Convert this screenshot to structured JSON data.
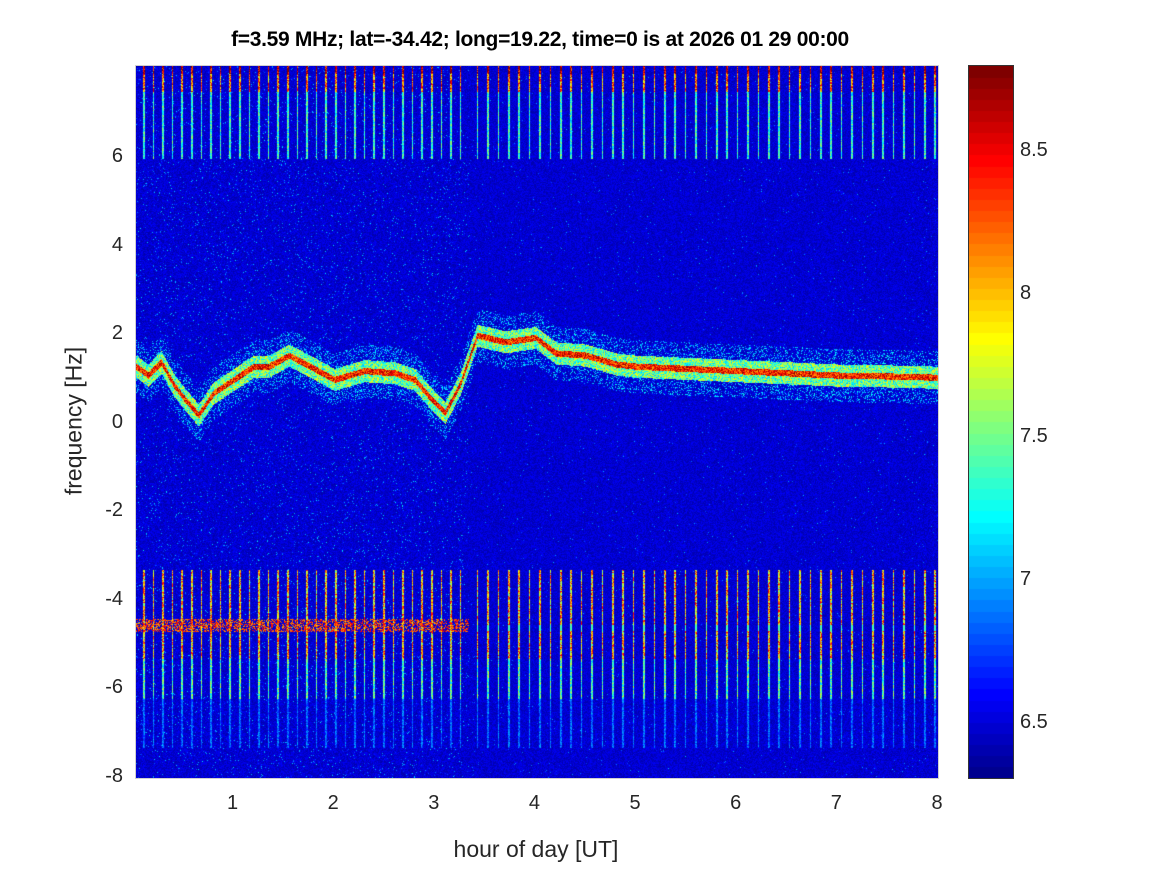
{
  "chart_data": {
    "type": "heatmap",
    "title": "f=3.59 MHz;  lat=-34.42; long=19.22, time=0 is at 2026 01 29 00:00",
    "xlabel": "hour of day [UT]",
    "ylabel": "frequency [Hz]",
    "xlim": [
      0.03,
      8
    ],
    "ylim": [
      -8,
      8.08
    ],
    "xticks": [
      1,
      2,
      3,
      4,
      5,
      6,
      7,
      8
    ],
    "yticks": [
      -8,
      -6,
      -4,
      -2,
      0,
      2,
      4,
      6
    ],
    "colormap": "jet",
    "clim": [
      6.31,
      8.8
    ],
    "colorbar_ticks": [
      6.5,
      7,
      7.5,
      8,
      8.5
    ],
    "colorbar_location": "right",
    "doppler_trace": [
      [
        0.03,
        1.3
      ],
      [
        0.15,
        1.1
      ],
      [
        0.28,
        1.4
      ],
      [
        0.4,
        0.9
      ],
      [
        0.5,
        0.6
      ],
      [
        0.65,
        0.2
      ],
      [
        0.8,
        0.7
      ],
      [
        1.0,
        1.0
      ],
      [
        1.2,
        1.3
      ],
      [
        1.35,
        1.3
      ],
      [
        1.55,
        1.55
      ],
      [
        1.8,
        1.25
      ],
      [
        2.0,
        1.0
      ],
      [
        2.3,
        1.2
      ],
      [
        2.6,
        1.15
      ],
      [
        2.8,
        1.0
      ],
      [
        2.95,
        0.6
      ],
      [
        3.1,
        0.25
      ],
      [
        3.25,
        0.9
      ],
      [
        3.42,
        2.0
      ],
      [
        3.7,
        1.85
      ],
      [
        4.0,
        1.95
      ],
      [
        4.2,
        1.6
      ],
      [
        4.5,
        1.55
      ],
      [
        4.8,
        1.35
      ],
      [
        5.0,
        1.3
      ],
      [
        5.5,
        1.25
      ],
      [
        6.0,
        1.2
      ],
      [
        6.5,
        1.15
      ],
      [
        7.0,
        1.1
      ],
      [
        7.5,
        1.08
      ],
      [
        8.0,
        1.05
      ]
    ],
    "interference_bands_hz": [
      [
        7.5,
        8.08
      ],
      [
        -5.3,
        -3.3
      ],
      [
        -6.2,
        -5.3
      ]
    ]
  }
}
